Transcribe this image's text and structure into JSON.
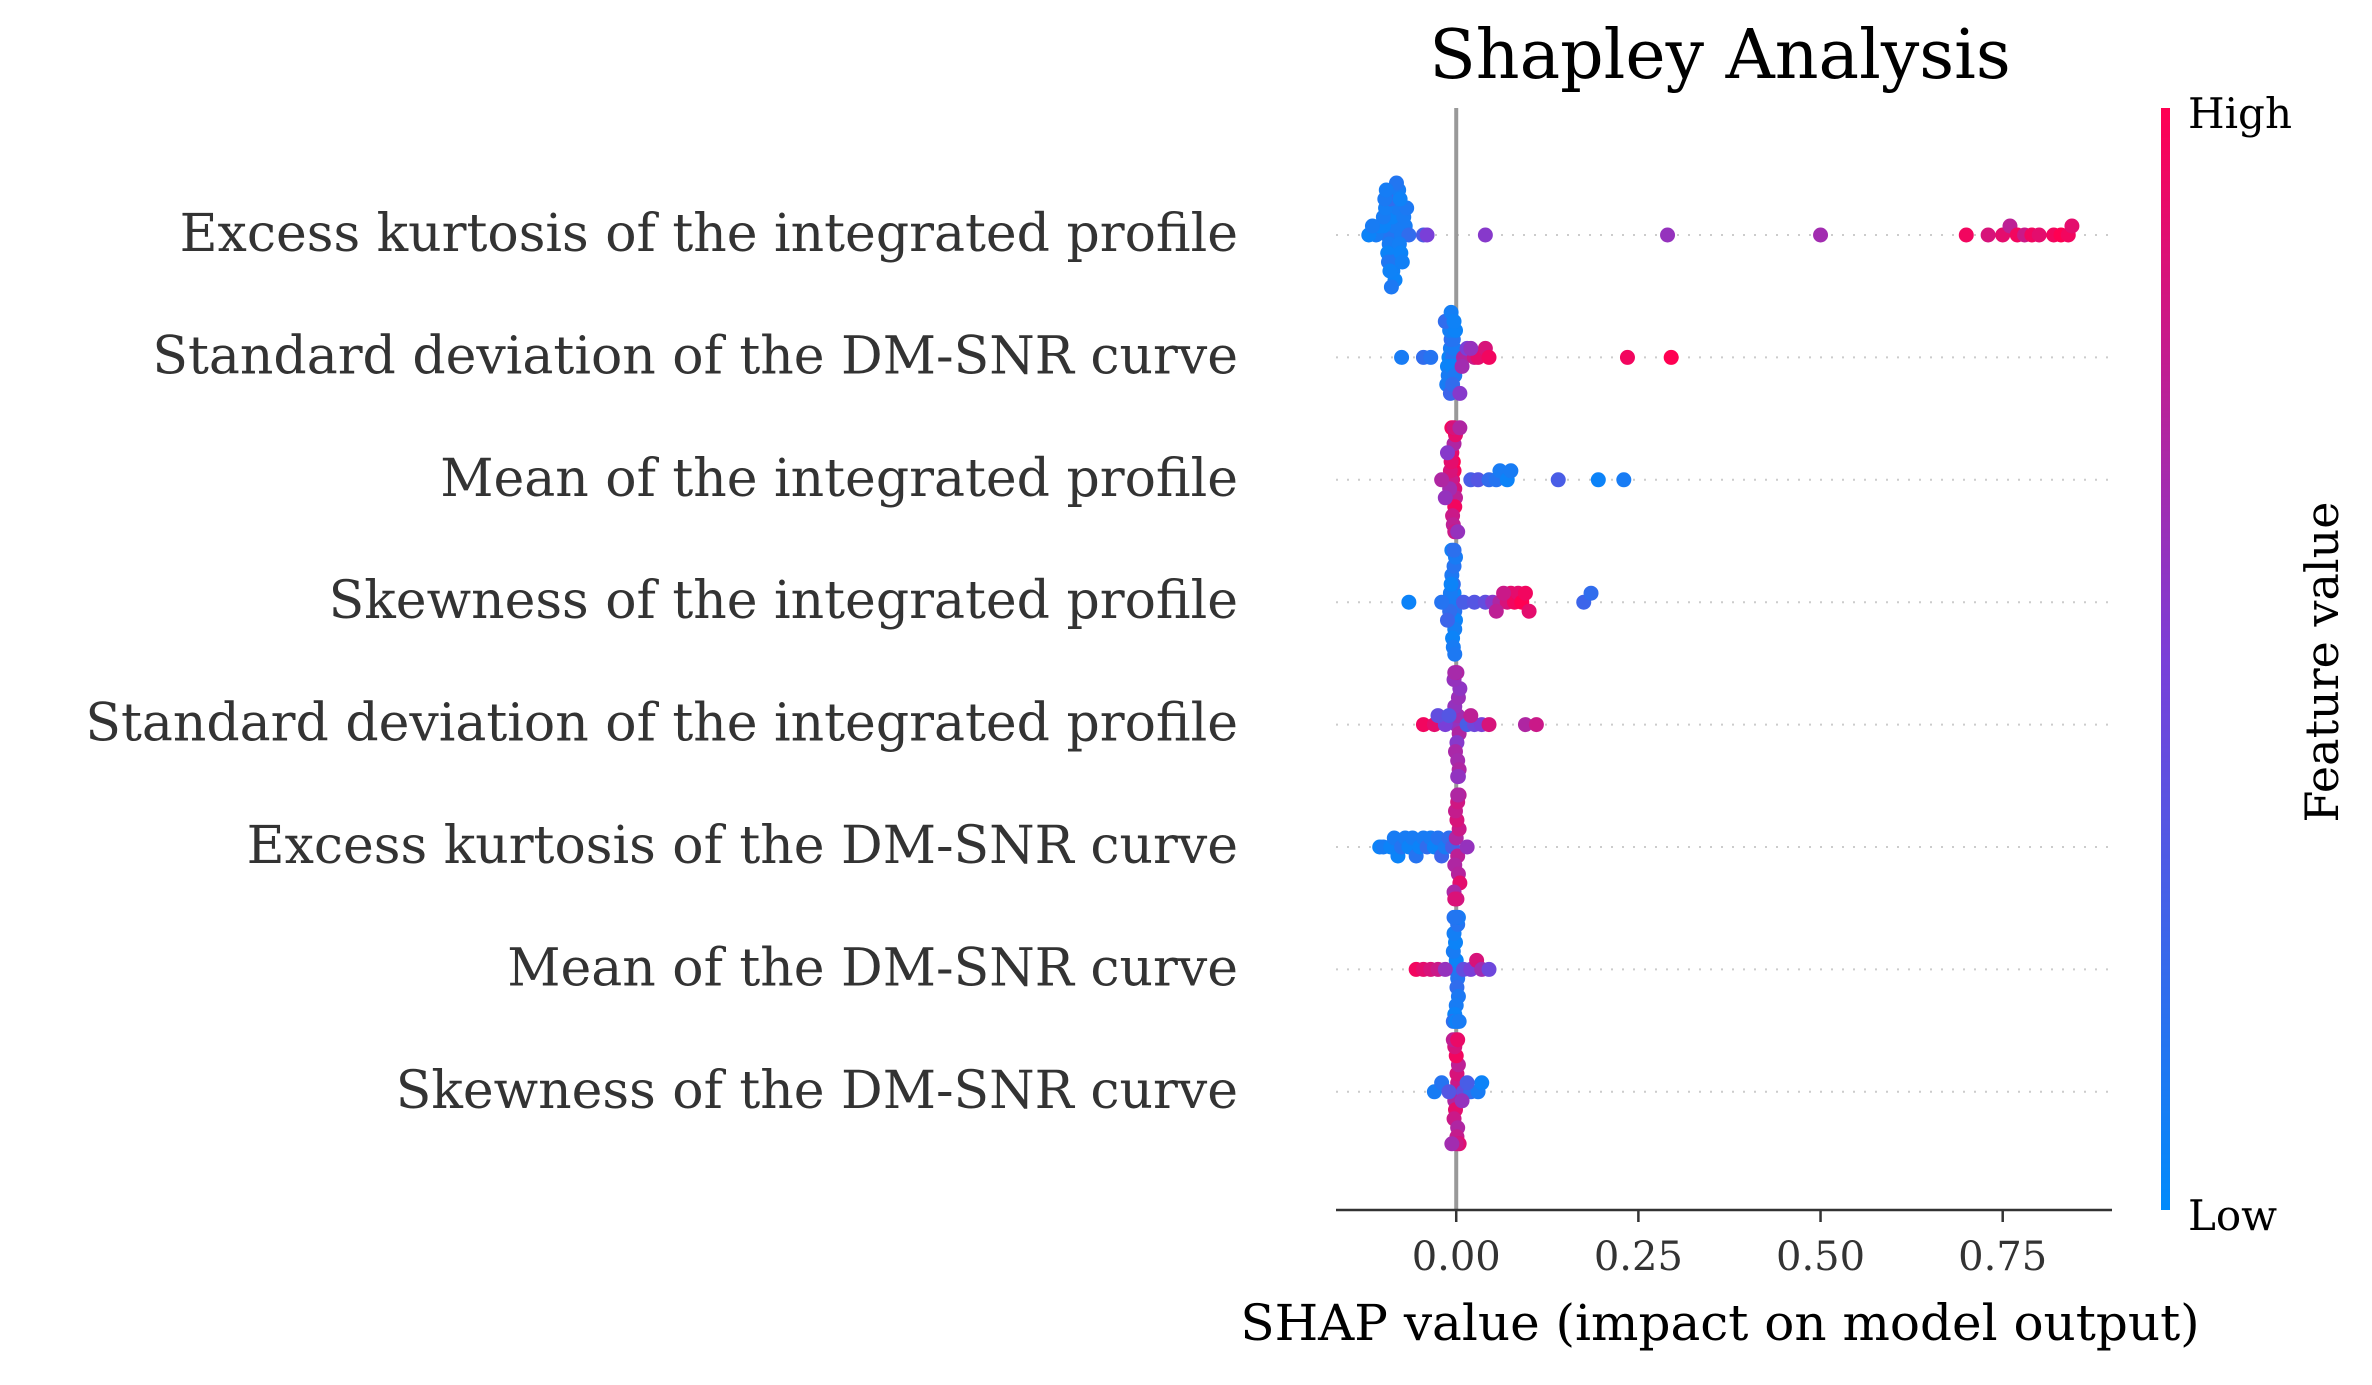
{
  "chart_data": {
    "type": "scatter",
    "subtype": "shap-beeswarm",
    "title": "Shapley Analysis",
    "xlabel": "SHAP value (impact on model output)",
    "xlim": [
      -0.165,
      0.9
    ],
    "xticks": [
      0.0,
      0.25,
      0.5,
      0.75
    ],
    "xtick_labels": [
      "0.00",
      "0.25",
      "0.50",
      "0.75"
    ],
    "zero_line": true,
    "grid": false,
    "colorbar": {
      "label": "Feature value",
      "high_label": "High",
      "low_label": "Low",
      "low_color": "#008bfb",
      "high_color": "#ff0052"
    },
    "features": [
      {
        "name": "Excess kurtosis of the integrated profile",
        "points": [
          [
            -0.09,
            0.05
          ],
          [
            -0.095,
            0.15
          ],
          [
            -0.085,
            0.1
          ],
          [
            -0.1,
            0.05
          ],
          [
            -0.11,
            0.1
          ],
          [
            -0.08,
            0.15
          ],
          [
            -0.075,
            0.1
          ],
          [
            -0.07,
            0.1
          ],
          [
            -0.065,
            0.2
          ],
          [
            -0.105,
            0.05
          ],
          [
            -0.092,
            0.1
          ],
          [
            -0.088,
            0.05
          ],
          [
            -0.083,
            0.12
          ],
          [
            -0.078,
            0.08
          ],
          [
            -0.072,
            0.1
          ],
          [
            -0.1,
            0.1
          ],
          [
            -0.094,
            0.05
          ],
          [
            -0.081,
            0.1
          ],
          [
            -0.086,
            0.15
          ],
          [
            -0.097,
            0.08
          ],
          [
            -0.12,
            0.05
          ],
          [
            -0.115,
            0.1
          ],
          [
            -0.09,
            0.2
          ],
          [
            -0.076,
            0.05
          ],
          [
            -0.068,
            0.12
          ],
          [
            -0.087,
            0.07
          ],
          [
            -0.093,
            0.13
          ],
          [
            -0.079,
            0.09
          ],
          [
            -0.084,
            0.05
          ],
          [
            -0.098,
            0.11
          ],
          [
            -0.091,
            0.06
          ],
          [
            -0.082,
            0.14
          ],
          [
            -0.074,
            0.07
          ],
          [
            -0.096,
            0.09
          ],
          [
            -0.089,
            0.12
          ],
          [
            -0.077,
            0.06
          ],
          [
            -0.045,
            0.3
          ],
          [
            -0.04,
            0.5
          ],
          [
            0.04,
            0.55
          ],
          [
            0.29,
            0.6
          ],
          [
            0.5,
            0.65
          ],
          [
            0.7,
            0.95
          ],
          [
            0.73,
            0.85
          ],
          [
            0.75,
            0.9
          ],
          [
            0.76,
            0.75
          ],
          [
            0.77,
            0.95
          ],
          [
            0.78,
            0.8
          ],
          [
            0.79,
            0.95
          ],
          [
            0.8,
            0.9
          ],
          [
            0.82,
            0.95
          ],
          [
            0.83,
            1.0
          ],
          [
            0.84,
            0.95
          ],
          [
            0.845,
            0.9
          ]
        ]
      },
      {
        "name": "Standard deviation of the DM-SNR curve",
        "points": [
          [
            -0.01,
            0.05
          ],
          [
            -0.008,
            0.1
          ],
          [
            -0.005,
            0.15
          ],
          [
            -0.012,
            0.05
          ],
          [
            -0.003,
            0.1
          ],
          [
            -0.007,
            0.2
          ],
          [
            -0.011,
            0.1
          ],
          [
            -0.006,
            0.05
          ],
          [
            -0.004,
            0.15
          ],
          [
            -0.009,
            0.08
          ],
          [
            -0.002,
            0.12
          ],
          [
            -0.013,
            0.1
          ],
          [
            -0.015,
            0.2
          ],
          [
            -0.001,
            0.05
          ],
          [
            -0.008,
            0.25
          ],
          [
            -0.005,
            0.2
          ],
          [
            -0.007,
            0.08
          ],
          [
            -0.003,
            0.06
          ],
          [
            -0.075,
            0.1
          ],
          [
            -0.045,
            0.2
          ],
          [
            -0.035,
            0.15
          ],
          [
            0.005,
            0.55
          ],
          [
            0.01,
            0.7
          ],
          [
            0.015,
            0.5
          ],
          [
            0.025,
            0.8
          ],
          [
            0.03,
            0.9
          ],
          [
            0.04,
            0.85
          ],
          [
            0.045,
            0.95
          ],
          [
            0.02,
            0.6
          ],
          [
            0.008,
            0.65
          ],
          [
            0.235,
            0.95
          ],
          [
            0.295,
            1.0
          ]
        ]
      },
      {
        "name": "Mean of the integrated profile",
        "points": [
          [
            -0.005,
            0.9
          ],
          [
            -0.003,
            0.95
          ],
          [
            -0.002,
            0.85
          ],
          [
            -0.007,
            0.8
          ],
          [
            -0.004,
            1.0
          ],
          [
            -0.001,
            0.75
          ],
          [
            -0.006,
            0.9
          ],
          [
            -0.002,
            0.95
          ],
          [
            -0.008,
            0.85
          ],
          [
            -0.003,
            0.7
          ],
          [
            -0.005,
            0.8
          ],
          [
            -0.001,
            0.9
          ],
          [
            -0.009,
            0.65
          ],
          [
            -0.004,
            0.75
          ],
          [
            -0.006,
            0.95
          ],
          [
            -0.002,
            0.8
          ],
          [
            -0.007,
            0.9
          ],
          [
            -0.003,
            0.85
          ],
          [
            -0.015,
            0.6
          ],
          [
            -0.02,
            0.7
          ],
          [
            -0.012,
            0.55
          ],
          [
            0.002,
            0.6
          ],
          [
            0.005,
            0.7
          ],
          [
            0.02,
            0.3
          ],
          [
            0.03,
            0.35
          ],
          [
            0.045,
            0.2
          ],
          [
            0.055,
            0.15
          ],
          [
            0.06,
            0.1
          ],
          [
            0.07,
            0.05
          ],
          [
            0.075,
            0.1
          ],
          [
            0.14,
            0.3
          ],
          [
            0.195,
            0.05
          ],
          [
            0.23,
            0.1
          ]
        ]
      },
      {
        "name": "Skewness of the integrated profile",
        "points": [
          [
            -0.005,
            0.1
          ],
          [
            -0.003,
            0.05
          ],
          [
            -0.002,
            0.15
          ],
          [
            -0.007,
            0.1
          ],
          [
            -0.004,
            0.2
          ],
          [
            -0.001,
            0.05
          ],
          [
            -0.006,
            0.12
          ],
          [
            -0.002,
            0.08
          ],
          [
            -0.008,
            0.1
          ],
          [
            -0.003,
            0.15
          ],
          [
            -0.005,
            0.05
          ],
          [
            -0.001,
            0.1
          ],
          [
            -0.009,
            0.2
          ],
          [
            -0.004,
            0.1
          ],
          [
            -0.006,
            0.08
          ],
          [
            -0.002,
            0.12
          ],
          [
            -0.007,
            0.05
          ],
          [
            -0.003,
            0.18
          ],
          [
            -0.065,
            0.05
          ],
          [
            -0.02,
            0.15
          ],
          [
            -0.012,
            0.25
          ],
          [
            0.01,
            0.3
          ],
          [
            0.025,
            0.35
          ],
          [
            0.04,
            0.4
          ],
          [
            0.05,
            0.55
          ],
          [
            0.06,
            0.7
          ],
          [
            0.07,
            0.85
          ],
          [
            0.075,
            0.9
          ],
          [
            0.08,
            0.95
          ],
          [
            0.085,
            0.9
          ],
          [
            0.09,
            1.0
          ],
          [
            0.095,
            0.95
          ],
          [
            0.1,
            0.9
          ],
          [
            0.065,
            0.8
          ],
          [
            0.055,
            0.75
          ],
          [
            0.175,
            0.25
          ],
          [
            0.185,
            0.2
          ]
        ]
      },
      {
        "name": "Standard deviation of the integrated profile",
        "points": [
          [
            0.0,
            0.6
          ],
          [
            0.002,
            0.65
          ],
          [
            0.004,
            0.7
          ],
          [
            -0.002,
            0.6
          ],
          [
            0.001,
            0.55
          ],
          [
            0.003,
            0.62
          ],
          [
            -0.001,
            0.68
          ],
          [
            0.005,
            0.58
          ],
          [
            0.002,
            0.66
          ],
          [
            -0.003,
            0.6
          ],
          [
            0.004,
            0.7
          ],
          [
            0.001,
            0.64
          ],
          [
            0.003,
            0.56
          ],
          [
            0.0,
            0.72
          ],
          [
            0.002,
            0.59
          ],
          [
            -0.002,
            0.67
          ],
          [
            -0.045,
            0.95
          ],
          [
            -0.03,
            0.9
          ],
          [
            -0.015,
            0.5
          ],
          [
            -0.025,
            0.4
          ],
          [
            -0.01,
            0.35
          ],
          [
            0.015,
            0.3
          ],
          [
            0.025,
            0.45
          ],
          [
            0.035,
            0.5
          ],
          [
            0.045,
            0.85
          ],
          [
            0.02,
            0.75
          ],
          [
            0.095,
            0.7
          ],
          [
            0.11,
            0.8
          ]
        ]
      },
      {
        "name": "Excess kurtosis of the DM-SNR curve",
        "points": [
          [
            -0.105,
            0.05
          ],
          [
            -0.1,
            0.1
          ],
          [
            -0.09,
            0.05
          ],
          [
            -0.085,
            0.1
          ],
          [
            -0.08,
            0.05
          ],
          [
            -0.075,
            0.15
          ],
          [
            -0.07,
            0.1
          ],
          [
            -0.065,
            0.05
          ],
          [
            -0.06,
            0.1
          ],
          [
            -0.055,
            0.15
          ],
          [
            -0.05,
            0.05
          ],
          [
            -0.045,
            0.1
          ],
          [
            -0.04,
            0.2
          ],
          [
            -0.035,
            0.1
          ],
          [
            -0.03,
            0.05
          ],
          [
            -0.025,
            0.15
          ],
          [
            -0.02,
            0.25
          ],
          [
            -0.015,
            0.1
          ],
          [
            -0.01,
            0.2
          ],
          [
            -0.005,
            0.3
          ],
          [
            0.0,
            0.7
          ],
          [
            0.002,
            0.75
          ],
          [
            0.004,
            0.8
          ],
          [
            -0.002,
            0.7
          ],
          [
            0.001,
            0.85
          ],
          [
            0.003,
            0.72
          ],
          [
            -0.001,
            0.78
          ],
          [
            0.005,
            0.9
          ],
          [
            0.002,
            0.82
          ],
          [
            -0.003,
            0.68
          ],
          [
            0.004,
            0.76
          ],
          [
            0.001,
            0.88
          ],
          [
            0.003,
            0.74
          ],
          [
            0.0,
            0.8
          ],
          [
            0.002,
            0.7
          ],
          [
            -0.002,
            0.86
          ],
          [
            0.015,
            0.6
          ]
        ]
      },
      {
        "name": "Mean of the DM-SNR curve",
        "points": [
          [
            -0.002,
            0.1
          ],
          [
            0.0,
            0.05
          ],
          [
            0.002,
            0.15
          ],
          [
            -0.004,
            0.1
          ],
          [
            0.001,
            0.2
          ],
          [
            -0.001,
            0.05
          ],
          [
            0.003,
            0.12
          ],
          [
            -0.003,
            0.08
          ],
          [
            0.0,
            0.1
          ],
          [
            0.002,
            0.15
          ],
          [
            -0.002,
            0.05
          ],
          [
            0.001,
            0.1
          ],
          [
            -0.004,
            0.2
          ],
          [
            0.003,
            0.1
          ],
          [
            -0.001,
            0.08
          ],
          [
            0.0,
            0.12
          ],
          [
            0.002,
            0.05
          ],
          [
            -0.003,
            0.18
          ],
          [
            0.004,
            0.1
          ],
          [
            -0.002,
            0.14
          ],
          [
            -0.055,
            0.95
          ],
          [
            -0.045,
            0.9
          ],
          [
            -0.035,
            0.85
          ],
          [
            -0.025,
            0.8
          ],
          [
            -0.015,
            0.6
          ],
          [
            0.01,
            0.4
          ],
          [
            0.02,
            0.5
          ],
          [
            0.028,
            0.85
          ],
          [
            0.035,
            0.65
          ],
          [
            0.045,
            0.45
          ]
        ]
      },
      {
        "name": "Skewness of the DM-SNR curve",
        "points": [
          [
            0.0,
            0.75
          ],
          [
            0.002,
            0.8
          ],
          [
            -0.002,
            0.7
          ],
          [
            0.001,
            0.85
          ],
          [
            -0.001,
            0.9
          ],
          [
            0.003,
            0.75
          ],
          [
            -0.003,
            0.8
          ],
          [
            0.0,
            0.95
          ],
          [
            0.002,
            0.7
          ],
          [
            -0.002,
            0.85
          ],
          [
            0.001,
            0.78
          ],
          [
            -0.001,
            0.72
          ],
          [
            0.004,
            0.88
          ],
          [
            -0.004,
            0.76
          ],
          [
            0.0,
            0.82
          ],
          [
            0.002,
            0.92
          ],
          [
            -0.03,
            0.1
          ],
          [
            -0.02,
            0.15
          ],
          [
            -0.01,
            0.35
          ],
          [
            0.01,
            0.4
          ],
          [
            0.02,
            0.2
          ],
          [
            0.03,
            0.1
          ],
          [
            0.035,
            0.05
          ],
          [
            0.015,
            0.3
          ],
          [
            0.008,
            0.6
          ],
          [
            -0.006,
            0.65
          ]
        ]
      }
    ]
  }
}
